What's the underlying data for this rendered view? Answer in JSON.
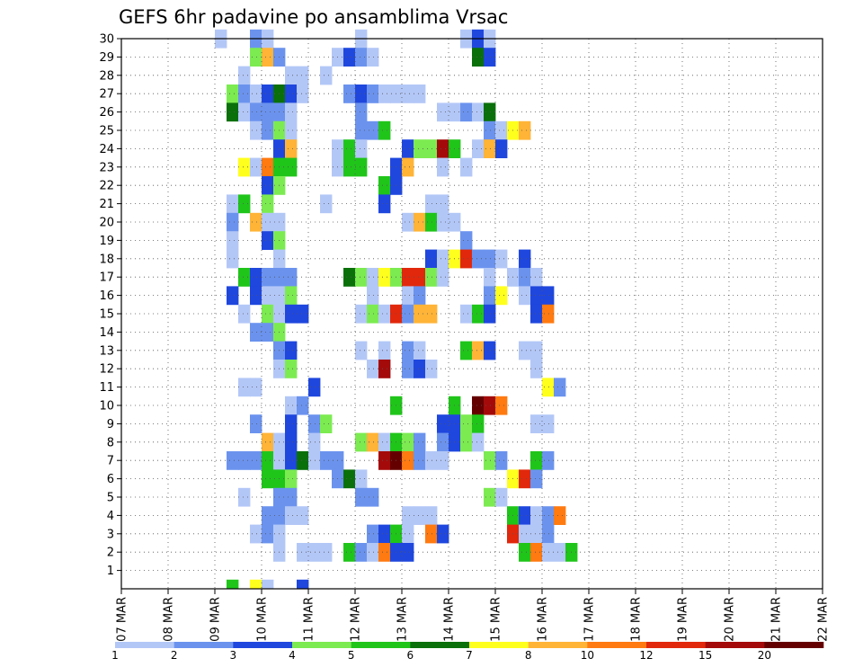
{
  "chart_data": {
    "type": "heatmap",
    "title": "GEFS 6hr padavine po ansamblima Vrsac",
    "xlabel": "",
    "ylabel": "",
    "x_ticks": [
      "07 MAR",
      "08 MAR",
      "09 MAR",
      "10 MAR",
      "11 MAR",
      "12 MAR",
      "13 MAR",
      "14 MAR",
      "15 MAR",
      "16 MAR",
      "17 MAR",
      "18 MAR",
      "19 MAR",
      "20 MAR",
      "21 MAR",
      "22 MAR"
    ],
    "y_ticks": [
      1,
      2,
      3,
      4,
      5,
      6,
      7,
      8,
      9,
      10,
      11,
      12,
      13,
      14,
      15,
      16,
      17,
      18,
      19,
      20,
      21,
      22,
      23,
      24,
      25,
      26,
      27,
      28,
      29,
      30
    ],
    "ylim": [
      0,
      30
    ],
    "grid": true,
    "legend_position": "bottom",
    "levels": [
      "1",
      "2",
      "3",
      "4",
      "5",
      "6",
      "7",
      "8",
      "10",
      "12",
      "15",
      "20"
    ],
    "colors": [
      "#b3c7f7",
      "#6b93ee",
      "#1f47de",
      "#7ceb51",
      "#20c51a",
      "#0a700a",
      "#ffff1e",
      "#ffb437",
      "#ff7a11",
      "#e1280c",
      "#a40a0a",
      "#650000"
    ],
    "x_unit": "6h step from 07 MAR 00Z",
    "cells": [
      [
        8,
        30,
        0
      ],
      [
        11,
        30,
        1
      ],
      [
        12,
        30,
        0
      ],
      [
        20,
        30,
        0
      ],
      [
        29,
        30,
        0
      ],
      [
        30,
        30,
        2
      ],
      [
        31,
        30,
        0
      ],
      [
        11,
        29,
        3
      ],
      [
        12,
        29,
        7
      ],
      [
        13,
        29,
        1
      ],
      [
        18,
        29,
        0
      ],
      [
        19,
        29,
        2
      ],
      [
        20,
        29,
        1
      ],
      [
        21,
        29,
        0
      ],
      [
        30,
        29,
        5
      ],
      [
        31,
        29,
        2
      ],
      [
        10,
        28,
        0
      ],
      [
        14,
        28,
        0
      ],
      [
        15,
        28,
        0
      ],
      [
        17,
        28,
        0
      ],
      [
        9,
        27,
        3
      ],
      [
        10,
        27,
        1
      ],
      [
        11,
        27,
        0
      ],
      [
        12,
        27,
        2
      ],
      [
        13,
        27,
        5
      ],
      [
        14,
        27,
        2
      ],
      [
        15,
        27,
        0
      ],
      [
        19,
        27,
        1
      ],
      [
        20,
        27,
        2
      ],
      [
        21,
        27,
        1
      ],
      [
        22,
        27,
        0
      ],
      [
        23,
        27,
        0
      ],
      [
        24,
        27,
        0
      ],
      [
        25,
        27,
        0
      ],
      [
        9,
        26,
        5
      ],
      [
        10,
        26,
        0
      ],
      [
        11,
        26,
        1
      ],
      [
        12,
        26,
        1
      ],
      [
        13,
        26,
        1
      ],
      [
        14,
        26,
        0
      ],
      [
        20,
        26,
        1
      ],
      [
        27,
        26,
        0
      ],
      [
        28,
        26,
        0
      ],
      [
        29,
        26,
        1
      ],
      [
        30,
        26,
        0
      ],
      [
        31,
        26,
        5
      ],
      [
        11,
        25,
        0
      ],
      [
        12,
        25,
        1
      ],
      [
        13,
        25,
        3
      ],
      [
        14,
        25,
        0
      ],
      [
        20,
        25,
        1
      ],
      [
        21,
        25,
        1
      ],
      [
        22,
        25,
        4
      ],
      [
        31,
        25,
        1
      ],
      [
        32,
        25,
        0
      ],
      [
        33,
        25,
        6
      ],
      [
        34,
        25,
        7
      ],
      [
        13,
        24,
        2
      ],
      [
        14,
        24,
        7
      ],
      [
        18,
        24,
        0
      ],
      [
        19,
        24,
        4
      ],
      [
        20,
        24,
        0
      ],
      [
        24,
        24,
        2
      ],
      [
        25,
        24,
        3
      ],
      [
        26,
        24,
        3
      ],
      [
        27,
        24,
        10
      ],
      [
        28,
        24,
        4
      ],
      [
        30,
        24,
        0
      ],
      [
        31,
        24,
        7
      ],
      [
        32,
        24,
        2
      ],
      [
        10,
        23,
        6
      ],
      [
        11,
        23,
        0
      ],
      [
        12,
        23,
        8
      ],
      [
        13,
        23,
        4
      ],
      [
        14,
        23,
        4
      ],
      [
        18,
        23,
        0
      ],
      [
        19,
        23,
        4
      ],
      [
        20,
        23,
        4
      ],
      [
        23,
        23,
        2
      ],
      [
        24,
        23,
        7
      ],
      [
        27,
        23,
        0
      ],
      [
        29,
        23,
        0
      ],
      [
        12,
        22,
        2
      ],
      [
        13,
        22,
        3
      ],
      [
        22,
        22,
        4
      ],
      [
        23,
        22,
        2
      ],
      [
        9,
        21,
        0
      ],
      [
        10,
        21,
        4
      ],
      [
        12,
        21,
        3
      ],
      [
        17,
        21,
        0
      ],
      [
        22,
        21,
        2
      ],
      [
        26,
        21,
        0
      ],
      [
        27,
        21,
        0
      ],
      [
        9,
        20,
        1
      ],
      [
        11,
        20,
        7
      ],
      [
        12,
        20,
        0
      ],
      [
        13,
        20,
        0
      ],
      [
        24,
        20,
        0
      ],
      [
        25,
        20,
        7
      ],
      [
        26,
        20,
        4
      ],
      [
        27,
        20,
        0
      ],
      [
        28,
        20,
        0
      ],
      [
        9,
        19,
        0
      ],
      [
        12,
        19,
        2
      ],
      [
        13,
        19,
        3
      ],
      [
        29,
        19,
        1
      ],
      [
        9,
        18,
        0
      ],
      [
        13,
        18,
        0
      ],
      [
        26,
        18,
        2
      ],
      [
        27,
        18,
        0
      ],
      [
        28,
        18,
        6
      ],
      [
        29,
        18,
        9
      ],
      [
        30,
        18,
        1
      ],
      [
        31,
        18,
        1
      ],
      [
        32,
        18,
        0
      ],
      [
        34,
        18,
        2
      ],
      [
        10,
        17,
        4
      ],
      [
        11,
        17,
        2
      ],
      [
        12,
        17,
        1
      ],
      [
        13,
        17,
        1
      ],
      [
        14,
        17,
        1
      ],
      [
        19,
        17,
        5
      ],
      [
        20,
        17,
        3
      ],
      [
        21,
        17,
        0
      ],
      [
        22,
        17,
        6
      ],
      [
        23,
        17,
        3
      ],
      [
        24,
        17,
        9
      ],
      [
        25,
        17,
        9
      ],
      [
        26,
        17,
        3
      ],
      [
        27,
        17,
        0
      ],
      [
        31,
        17,
        0
      ],
      [
        33,
        17,
        0
      ],
      [
        34,
        17,
        1
      ],
      [
        35,
        17,
        0
      ],
      [
        9,
        16,
        2
      ],
      [
        11,
        16,
        2
      ],
      [
        12,
        16,
        0
      ],
      [
        13,
        16,
        0
      ],
      [
        14,
        16,
        3
      ],
      [
        21,
        16,
        0
      ],
      [
        24,
        16,
        0
      ],
      [
        25,
        16,
        1
      ],
      [
        31,
        16,
        1
      ],
      [
        32,
        16,
        6
      ],
      [
        34,
        16,
        0
      ],
      [
        35,
        16,
        2
      ],
      [
        36,
        16,
        2
      ],
      [
        10,
        15,
        0
      ],
      [
        12,
        15,
        3
      ],
      [
        13,
        15,
        0
      ],
      [
        14,
        15,
        2
      ],
      [
        15,
        15,
        2
      ],
      [
        20,
        15,
        0
      ],
      [
        21,
        15,
        3
      ],
      [
        22,
        15,
        0
      ],
      [
        23,
        15,
        9
      ],
      [
        24,
        15,
        1
      ],
      [
        25,
        15,
        7
      ],
      [
        26,
        15,
        7
      ],
      [
        29,
        15,
        0
      ],
      [
        30,
        15,
        4
      ],
      [
        31,
        15,
        2
      ],
      [
        35,
        15,
        2
      ],
      [
        36,
        15,
        8
      ],
      [
        11,
        14,
        1
      ],
      [
        12,
        14,
        1
      ],
      [
        13,
        14,
        3
      ],
      [
        13,
        13,
        1
      ],
      [
        14,
        13,
        2
      ],
      [
        20,
        13,
        0
      ],
      [
        22,
        13,
        0
      ],
      [
        24,
        13,
        1
      ],
      [
        25,
        13,
        0
      ],
      [
        29,
        13,
        4
      ],
      [
        30,
        13,
        7
      ],
      [
        31,
        13,
        2
      ],
      [
        34,
        13,
        0
      ],
      [
        35,
        13,
        0
      ],
      [
        13,
        12,
        0
      ],
      [
        14,
        12,
        3
      ],
      [
        21,
        12,
        0
      ],
      [
        22,
        12,
        10
      ],
      [
        24,
        12,
        1
      ],
      [
        25,
        12,
        2
      ],
      [
        26,
        12,
        0
      ],
      [
        35,
        12,
        0
      ],
      [
        10,
        11,
        0
      ],
      [
        11,
        11,
        0
      ],
      [
        16,
        11,
        2
      ],
      [
        36,
        11,
        6
      ],
      [
        37,
        11,
        1
      ],
      [
        14,
        10,
        0
      ],
      [
        15,
        10,
        1
      ],
      [
        23,
        10,
        4
      ],
      [
        28,
        10,
        4
      ],
      [
        30,
        10,
        11
      ],
      [
        31,
        10,
        10
      ],
      [
        32,
        10,
        8
      ],
      [
        11,
        9,
        1
      ],
      [
        14,
        9,
        2
      ],
      [
        16,
        9,
        1
      ],
      [
        17,
        9,
        3
      ],
      [
        27,
        9,
        2
      ],
      [
        28,
        9,
        2
      ],
      [
        29,
        9,
        3
      ],
      [
        30,
        9,
        4
      ],
      [
        35,
        9,
        0
      ],
      [
        36,
        9,
        0
      ],
      [
        12,
        8,
        7
      ],
      [
        13,
        8,
        0
      ],
      [
        14,
        8,
        2
      ],
      [
        16,
        8,
        0
      ],
      [
        20,
        8,
        3
      ],
      [
        21,
        8,
        7
      ],
      [
        22,
        8,
        0
      ],
      [
        23,
        8,
        4
      ],
      [
        24,
        8,
        3
      ],
      [
        25,
        8,
        1
      ],
      [
        27,
        8,
        1
      ],
      [
        28,
        8,
        2
      ],
      [
        29,
        8,
        3
      ],
      [
        30,
        8,
        0
      ],
      [
        9,
        7,
        1
      ],
      [
        10,
        7,
        1
      ],
      [
        11,
        7,
        1
      ],
      [
        12,
        7,
        4
      ],
      [
        13,
        7,
        0
      ],
      [
        14,
        7,
        2
      ],
      [
        15,
        7,
        5
      ],
      [
        16,
        7,
        0
      ],
      [
        17,
        7,
        1
      ],
      [
        18,
        7,
        1
      ],
      [
        22,
        7,
        10
      ],
      [
        23,
        7,
        11
      ],
      [
        24,
        7,
        8
      ],
      [
        25,
        7,
        1
      ],
      [
        26,
        7,
        0
      ],
      [
        27,
        7,
        0
      ],
      [
        31,
        7,
        3
      ],
      [
        32,
        7,
        1
      ],
      [
        35,
        7,
        4
      ],
      [
        36,
        7,
        1
      ],
      [
        12,
        6,
        4
      ],
      [
        13,
        6,
        4
      ],
      [
        14,
        6,
        3
      ],
      [
        18,
        6,
        1
      ],
      [
        19,
        6,
        5
      ],
      [
        20,
        6,
        0
      ],
      [
        33,
        6,
        6
      ],
      [
        34,
        6,
        9
      ],
      [
        35,
        6,
        1
      ],
      [
        10,
        5,
        0
      ],
      [
        13,
        5,
        1
      ],
      [
        14,
        5,
        1
      ],
      [
        20,
        5,
        1
      ],
      [
        21,
        5,
        1
      ],
      [
        31,
        5,
        3
      ],
      [
        32,
        5,
        0
      ],
      [
        12,
        4,
        1
      ],
      [
        13,
        4,
        1
      ],
      [
        14,
        4,
        0
      ],
      [
        15,
        4,
        0
      ],
      [
        24,
        4,
        0
      ],
      [
        25,
        4,
        0
      ],
      [
        26,
        4,
        0
      ],
      [
        33,
        4,
        4
      ],
      [
        34,
        4,
        2
      ],
      [
        35,
        4,
        0
      ],
      [
        36,
        4,
        1
      ],
      [
        37,
        4,
        8
      ],
      [
        11,
        3,
        0
      ],
      [
        12,
        3,
        1
      ],
      [
        13,
        3,
        0
      ],
      [
        21,
        3,
        1
      ],
      [
        22,
        3,
        2
      ],
      [
        23,
        3,
        4
      ],
      [
        24,
        3,
        0
      ],
      [
        26,
        3,
        8
      ],
      [
        27,
        3,
        2
      ],
      [
        33,
        3,
        9
      ],
      [
        34,
        3,
        0
      ],
      [
        35,
        3,
        0
      ],
      [
        36,
        3,
        1
      ],
      [
        13,
        2,
        0
      ],
      [
        15,
        2,
        0
      ],
      [
        16,
        2,
        0
      ],
      [
        17,
        2,
        0
      ],
      [
        19,
        2,
        4
      ],
      [
        20,
        2,
        1
      ],
      [
        21,
        2,
        0
      ],
      [
        22,
        2,
        8
      ],
      [
        23,
        2,
        2
      ],
      [
        24,
        2,
        2
      ],
      [
        34,
        2,
        4
      ],
      [
        35,
        2,
        8
      ],
      [
        36,
        2,
        0
      ],
      [
        37,
        2,
        0
      ],
      [
        38,
        2,
        4
      ]
    ],
    "row0_cells": [
      [
        9,
        4
      ],
      [
        11,
        6
      ],
      [
        12,
        0
      ],
      [
        15,
        2
      ]
    ]
  },
  "legend": {
    "labels": [
      "1",
      "2",
      "3",
      "4",
      "5",
      "6",
      "7",
      "8",
      "10",
      "12",
      "15",
      "20"
    ]
  }
}
